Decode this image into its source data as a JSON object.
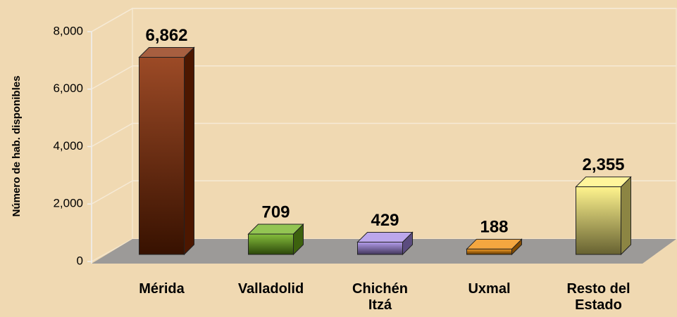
{
  "chart_data": {
    "type": "bar3d",
    "y_label": "Número de hab. disponibles",
    "categories": [
      "Mérida",
      "Valladolid",
      "Chichén Itzá",
      "Uxmal",
      "Resto del Estado"
    ],
    "values": [
      6862,
      709,
      429,
      188,
      2355
    ],
    "value_labels": [
      "6,862",
      "709",
      "429",
      "188",
      "2,355"
    ],
    "colors": [
      "#8a2a00",
      "#6fb21a",
      "#a58ae6",
      "#f08a00",
      "#fff27a"
    ],
    "ylim": [
      0,
      8000
    ],
    "yticks": [
      0,
      {
        "value": 2000,
        "label": "2,000"
      },
      {
        "value": 4000,
        "label": "4,000"
      },
      {
        "value": 6000,
        "label": "6,000"
      },
      {
        "value": 8000,
        "label": "8,000"
      }
    ],
    "grid": true
  }
}
